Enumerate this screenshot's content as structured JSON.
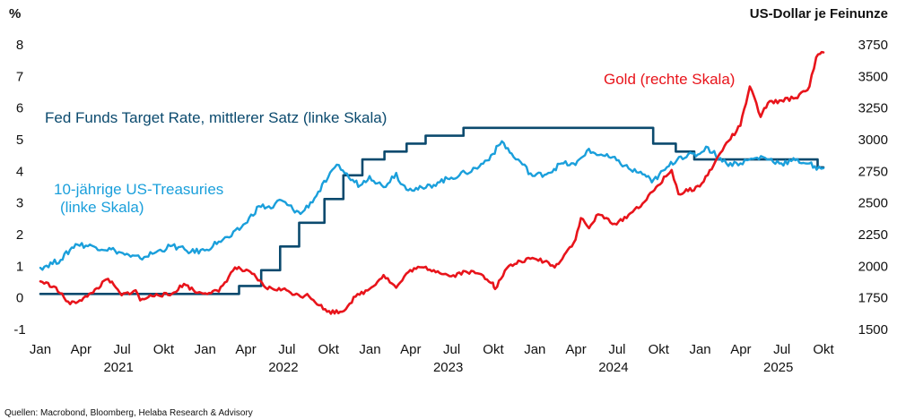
{
  "chart_data": {
    "type": "line",
    "left_axis": {
      "unit": "%",
      "ylim": [
        -1,
        8
      ],
      "ticks": [
        "8",
        "7",
        "6",
        "5",
        "4",
        "3",
        "2",
        "1",
        "0",
        "-1"
      ]
    },
    "right_axis": {
      "unit": "US-Dollar je Feinunze",
      "ylim": [
        1500,
        3750
      ],
      "ticks": [
        "3750",
        "3500",
        "3250",
        "3000",
        "2750",
        "2500",
        "2250",
        "2000",
        "1750",
        "1500"
      ]
    },
    "x_axis": {
      "month_labels": [
        "Jan",
        "Apr",
        "Jul",
        "Okt",
        "Jan",
        "Apr",
        "Jul",
        "Okt",
        "Jan",
        "Apr",
        "Jul",
        "Okt",
        "Jan",
        "Apr",
        "Jul",
        "Okt",
        "Jan",
        "Apr",
        "Jul",
        "Okt"
      ],
      "years": [
        "2021",
        "2022",
        "2023",
        "2024",
        "2025"
      ],
      "range": [
        "2021-01",
        "2025-10"
      ]
    },
    "series": [
      {
        "name": "Fed Funds Target Rate, mittlerer Satz  (linke Skala)",
        "axis": "left",
        "color": "#0b4a6e",
        "step": true,
        "x": [
          "2021-01-01",
          "2022-03-17",
          "2022-05-05",
          "2022-06-16",
          "2022-07-28",
          "2022-09-22",
          "2022-11-03",
          "2022-12-15",
          "2023-02-02",
          "2023-03-23",
          "2023-05-04",
          "2023-07-27",
          "2024-09-19",
          "2024-11-08",
          "2024-12-19",
          "2025-09-18",
          "2025-10-01"
        ],
        "y": [
          0.125,
          0.375,
          0.875,
          1.625,
          2.375,
          3.125,
          3.875,
          4.375,
          4.625,
          4.875,
          5.125,
          5.375,
          4.875,
          4.625,
          4.375,
          4.125,
          4.125
        ]
      },
      {
        "name": "10-jährige US-Treasuries\n(linke Skala)",
        "axis": "left",
        "color": "#1a9fdb",
        "x": [
          "2021-01-01",
          "2021-02-15",
          "2021-03-20",
          "2021-04-30",
          "2021-06-15",
          "2021-07-20",
          "2021-08-10",
          "2021-09-15",
          "2021-10-20",
          "2021-11-30",
          "2021-12-31",
          "2022-01-31",
          "2022-02-28",
          "2022-03-31",
          "2022-04-30",
          "2022-05-31",
          "2022-06-15",
          "2022-07-31",
          "2022-08-31",
          "2022-09-30",
          "2022-10-24",
          "2022-11-15",
          "2022-12-10",
          "2022-12-31",
          "2023-01-31",
          "2023-02-28",
          "2023-03-10",
          "2023-03-31",
          "2023-04-30",
          "2023-05-31",
          "2023-06-30",
          "2023-07-31",
          "2023-08-31",
          "2023-09-30",
          "2023-10-20",
          "2023-11-15",
          "2023-11-30",
          "2023-12-27",
          "2024-01-31",
          "2024-02-29",
          "2024-03-31",
          "2024-04-25",
          "2024-05-31",
          "2024-06-30",
          "2024-07-31",
          "2024-08-31",
          "2024-09-16",
          "2024-10-15",
          "2024-11-15",
          "2024-12-31",
          "2025-01-14",
          "2025-02-28",
          "2025-03-31",
          "2025-04-15",
          "2025-05-20",
          "2025-06-30",
          "2025-07-31",
          "2025-08-31",
          "2025-09-16",
          "2025-10-01"
        ],
        "y": [
          0.95,
          1.2,
          1.7,
          1.62,
          1.5,
          1.3,
          1.25,
          1.45,
          1.65,
          1.45,
          1.5,
          1.78,
          1.95,
          2.35,
          2.9,
          2.85,
          3.1,
          2.65,
          3.15,
          3.8,
          4.2,
          3.8,
          3.55,
          3.85,
          3.5,
          3.95,
          3.6,
          3.45,
          3.45,
          3.65,
          3.8,
          3.95,
          4.15,
          4.55,
          4.95,
          4.45,
          4.3,
          3.85,
          3.95,
          4.25,
          4.2,
          4.65,
          4.5,
          4.35,
          4.05,
          3.9,
          3.65,
          4.05,
          4.45,
          4.55,
          4.78,
          4.25,
          4.25,
          4.35,
          4.45,
          4.25,
          4.35,
          4.25,
          4.05,
          4.1
        ]
      },
      {
        "name": "Gold (rechte Skala)",
        "axis": "right",
        "color": "#e8141b",
        "x": [
          "2021-01-01",
          "2021-01-31",
          "2021-03-08",
          "2021-04-15",
          "2021-05-31",
          "2021-06-30",
          "2021-07-31",
          "2021-08-10",
          "2021-09-15",
          "2021-10-15",
          "2021-11-15",
          "2021-12-15",
          "2022-01-31",
          "2022-03-08",
          "2022-04-15",
          "2022-05-15",
          "2022-06-30",
          "2022-07-31",
          "2022-08-15",
          "2022-09-28",
          "2022-10-31",
          "2022-11-30",
          "2022-12-31",
          "2023-01-31",
          "2023-02-28",
          "2023-03-31",
          "2023-04-30",
          "2023-05-31",
          "2023-06-30",
          "2023-07-31",
          "2023-08-31",
          "2023-09-30",
          "2023-10-05",
          "2023-10-31",
          "2023-11-30",
          "2023-12-31",
          "2024-01-31",
          "2024-02-14",
          "2024-03-31",
          "2024-04-12",
          "2024-04-30",
          "2024-05-20",
          "2024-06-30",
          "2024-07-31",
          "2024-08-31",
          "2024-09-30",
          "2024-10-30",
          "2024-11-14",
          "2024-12-31",
          "2025-01-31",
          "2025-02-24",
          "2025-03-31",
          "2025-04-21",
          "2025-05-15",
          "2025-05-31",
          "2025-06-30",
          "2025-07-31",
          "2025-08-31",
          "2025-09-15",
          "2025-10-01"
        ],
        "y": [
          1880,
          1840,
          1700,
          1760,
          1900,
          1770,
          1810,
          1730,
          1780,
          1770,
          1860,
          1790,
          1800,
          1990,
          1940,
          1830,
          1810,
          1760,
          1780,
          1640,
          1640,
          1760,
          1820,
          1930,
          1830,
          1970,
          1990,
          1960,
          1920,
          1960,
          1940,
          1870,
          1820,
          1985,
          2040,
          2060,
          2030,
          1990,
          2210,
          2380,
          2300,
          2410,
          2330,
          2420,
          2510,
          2640,
          2760,
          2570,
          2630,
          2800,
          2950,
          3110,
          3420,
          3180,
          3290,
          3310,
          3330,
          3420,
          3650,
          3690
        ]
      }
    ],
    "annotations": {
      "fed": "Fed Funds Target Rate, mittlerer Satz  (linke Skala)",
      "treasury_line1": "10-jährige US-Treasuries",
      "treasury_line2": "(linke Skala)",
      "gold": "Gold (rechte Skala)"
    },
    "source": "Quellen: Macrobond, Bloomberg, Helaba Research & Advisory",
    "grid": false,
    "colors": {
      "fed": "#0b4a6e",
      "treasury": "#1a9fdb",
      "gold": "#e8141b",
      "text": "#111111"
    }
  }
}
